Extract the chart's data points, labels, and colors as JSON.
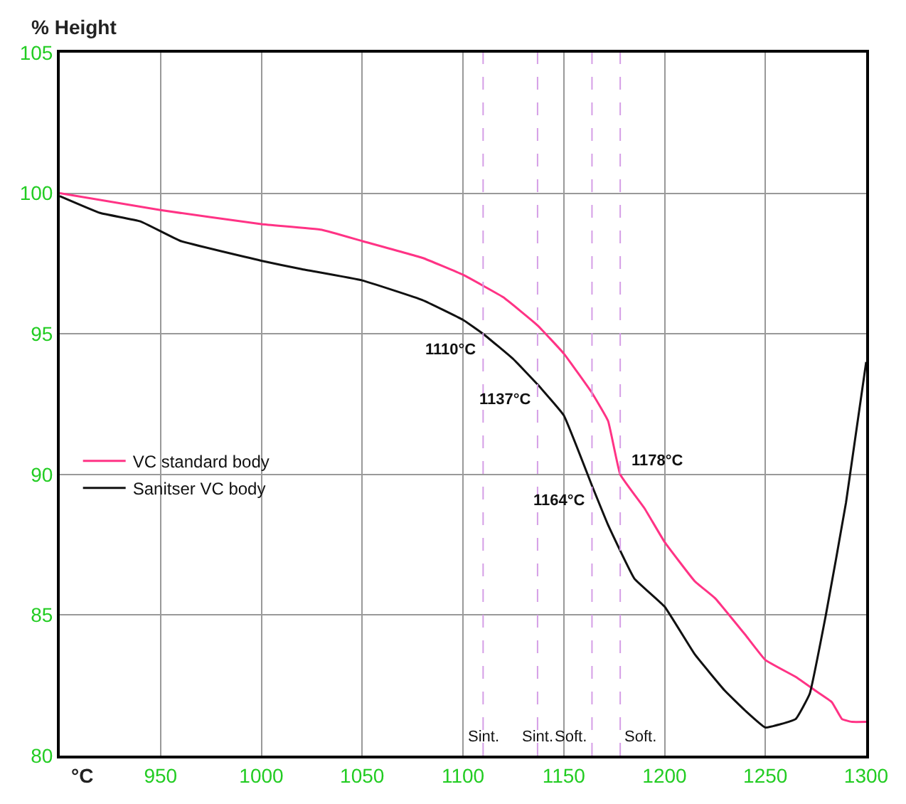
{
  "chart_data": {
    "type": "line",
    "xlabel": "°C",
    "ylabel": "% Height",
    "xlim": [
      900,
      1300
    ],
    "xticks": [
      950,
      1000,
      1050,
      1100,
      1150,
      1200,
      1250,
      1300
    ],
    "ylim": [
      80,
      105
    ],
    "yticks": [
      80,
      85,
      90,
      95,
      100,
      105
    ],
    "grid": true,
    "legend": "left",
    "marker": "none",
    "line_style": "solid",
    "series": [
      {
        "name": "VC standard body",
        "color": "#ff3385",
        "x": [
          900,
          950,
          1000,
          1030,
          1050,
          1080,
          1100,
          1120,
          1137,
          1150,
          1164,
          1172,
          1178,
          1190,
          1200,
          1215,
          1225,
          1240,
          1250,
          1265,
          1275,
          1283,
          1288,
          1293,
          1300
        ],
        "values": [
          100.0,
          99.4,
          98.9,
          98.7,
          98.3,
          97.7,
          97.1,
          96.3,
          95.3,
          94.3,
          92.9,
          91.9,
          90.0,
          88.8,
          87.6,
          86.2,
          85.6,
          84.3,
          83.4,
          82.8,
          82.3,
          81.9,
          81.3,
          81.2,
          81.2
        ]
      },
      {
        "name": "Sanitser VC body",
        "color": "#111111",
        "x": [
          900,
          920,
          940,
          960,
          1000,
          1020,
          1050,
          1080,
          1100,
          1110,
          1125,
          1137,
          1150,
          1164,
          1172,
          1185,
          1200,
          1215,
          1230,
          1240,
          1250,
          1265,
          1272,
          1280,
          1290,
          1300
        ],
        "values": [
          99.9,
          99.3,
          99.0,
          98.3,
          97.6,
          97.3,
          96.9,
          96.2,
          95.5,
          95.0,
          94.1,
          93.2,
          92.1,
          89.6,
          88.2,
          86.3,
          85.3,
          83.6,
          82.3,
          81.6,
          81.0,
          81.3,
          82.2,
          85.0,
          89.0,
          94.0
        ]
      }
    ],
    "ref_lines": [
      {
        "axis": "x",
        "value": 1110,
        "label": "Sint.",
        "color": "#d59ee6",
        "line_style": "dashed"
      },
      {
        "axis": "x",
        "value": 1137,
        "label": "Sint.",
        "color": "#d59ee6",
        "line_style": "dashed"
      },
      {
        "axis": "x",
        "value": 1164,
        "label": "Soft.",
        "color": "#d59ee6",
        "line_style": "dashed"
      },
      {
        "axis": "x",
        "value": 1178,
        "label": "Soft.",
        "color": "#d59ee6",
        "line_style": "dashed"
      }
    ],
    "annotations": [
      {
        "text": "1110°C",
        "x": 1110,
        "y": 95.0
      },
      {
        "text": "1137°C",
        "x": 1137,
        "y": 93.2
      },
      {
        "text": "1164°C",
        "x": 1164,
        "y": 89.6
      },
      {
        "text": "1178°C",
        "x": 1178,
        "y": 90.0
      }
    ]
  }
}
